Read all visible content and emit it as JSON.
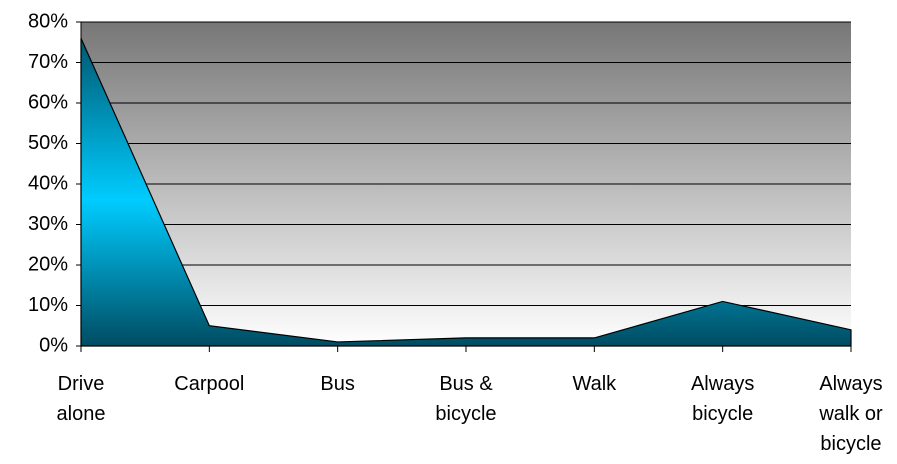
{
  "chart_data": {
    "type": "area",
    "categories": [
      "Drive alone",
      "Carpool",
      "Bus",
      "Bus & bicycle",
      "Walk",
      "Always bicycle",
      "Always walk or bicycle"
    ],
    "values": [
      76,
      5,
      1,
      2,
      2,
      11,
      4
    ],
    "ylim": [
      0,
      80
    ],
    "yticks": [
      {
        "value": 0,
        "label": "0%"
      },
      {
        "value": 10,
        "label": "10%"
      },
      {
        "value": 20,
        "label": "20%"
      },
      {
        "value": 30,
        "label": "30%"
      },
      {
        "value": 40,
        "label": "40%"
      },
      {
        "value": 50,
        "label": "50%"
      },
      {
        "value": 60,
        "label": "60%"
      },
      {
        "value": 70,
        "label": "70%"
      },
      {
        "value": 80,
        "label": "80%"
      }
    ],
    "grid": true
  }
}
